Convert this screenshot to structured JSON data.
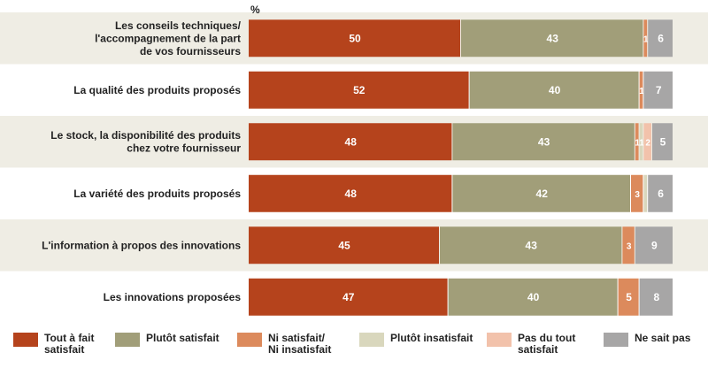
{
  "chart_data": {
    "type": "bar",
    "orientation": "horizontal",
    "stacked": true,
    "unit_label": "%",
    "xlim": [
      0,
      100
    ],
    "grid": false,
    "legend_position": "bottom",
    "categories": [
      "Les conseils techniques/\nl'accompagnement de la part\nde vos fournisseurs",
      "La qualité des produits proposés",
      "Le stock, la disponibilité des produits\nchez votre fournisseur",
      "La variété des produits proposés",
      "L'information à propos des innovations",
      "Les innovations proposées"
    ],
    "series": [
      {
        "name": "Tout à fait\nsatisfait",
        "color": "#b5431c",
        "values": [
          50,
          52,
          48,
          48,
          45,
          47
        ],
        "labels": [
          "50",
          "52",
          "48",
          "48",
          "45",
          "47"
        ]
      },
      {
        "name": "Plutôt satisfait",
        "color": "#a19e79",
        "values": [
          43,
          40,
          43,
          42,
          43,
          40
        ],
        "labels": [
          "43",
          "40",
          "43",
          "42",
          "43",
          "40"
        ]
      },
      {
        "name": "Ni satisfait/\nNi insatisfait",
        "color": "#dc8a5c",
        "values": [
          1,
          1,
          1,
          3,
          3,
          5
        ],
        "labels": [
          "1",
          "1",
          "1",
          "3",
          "3",
          "5"
        ]
      },
      {
        "name": "Plutôt insatisfait",
        "color": "#d9d7bd",
        "values": [
          0,
          0,
          1,
          1,
          0,
          0
        ],
        "labels": [
          "",
          "",
          "1",
          "",
          "",
          ""
        ]
      },
      {
        "name": "Pas du tout\nsatisfait",
        "color": "#f2c2ab",
        "values": [
          0,
          0,
          2,
          0,
          0,
          0
        ],
        "labels": [
          "",
          "",
          "2",
          "",
          "",
          ""
        ]
      },
      {
        "name": "Ne sait pas",
        "color": "#a7a6a6",
        "values": [
          6,
          7,
          5,
          6,
          9,
          8
        ],
        "labels": [
          "6",
          "7",
          "5",
          "6",
          "9",
          "8"
        ]
      }
    ],
    "row_band_color": "#efede4"
  }
}
